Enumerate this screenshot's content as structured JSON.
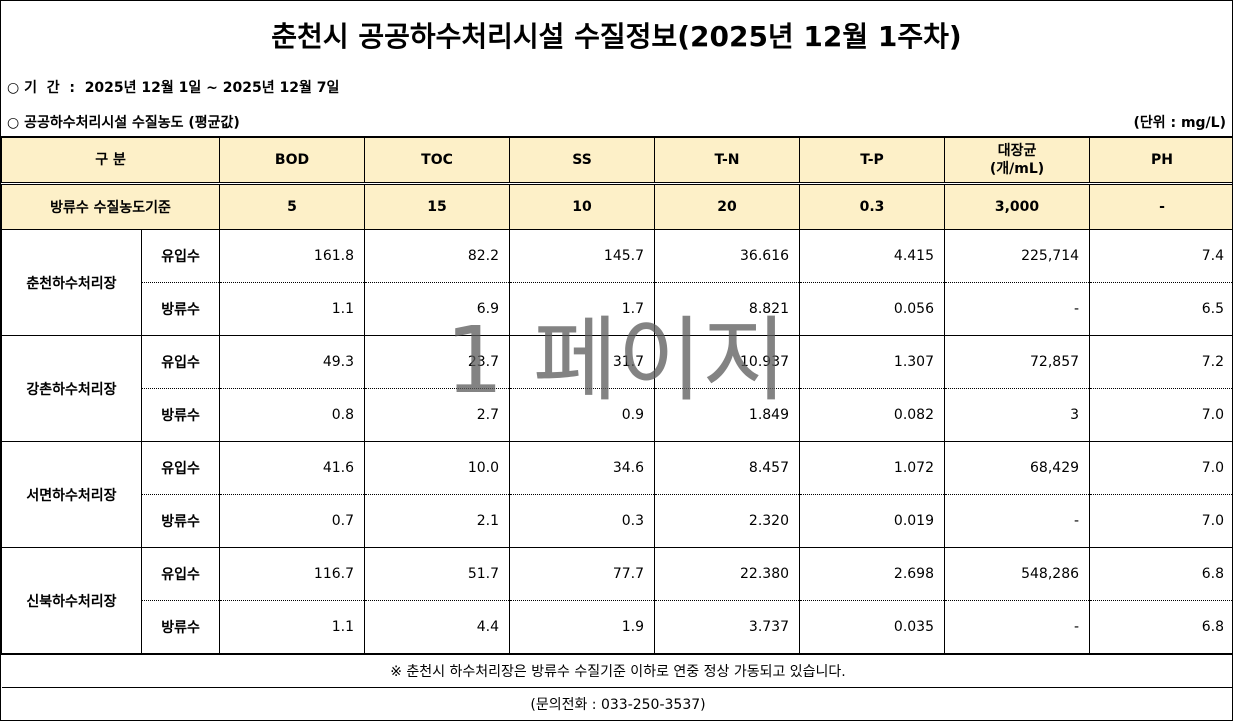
{
  "header": {
    "title": "춘천시 공공하수처리시설 수질정보(2025년 12월 1주차)",
    "period": "○ 기  간  :  2025년 12월 1일 ~ 2025년 12월 7일",
    "subtitle": "○ 공공하수처리시설 수질농도 (평균값)",
    "unit": "(단위 : mg/L)"
  },
  "table": {
    "columns": [
      "구  분",
      "BOD",
      "TOC",
      "SS",
      "T-N",
      "T-P",
      "대장균\n(개/mL)",
      "PH"
    ],
    "standard": {
      "label": "방류수 수질농도기준",
      "values": [
        "5",
        "15",
        "10",
        "20",
        "0.3",
        "3,000",
        "-"
      ]
    },
    "plants": [
      {
        "name": "춘천하수처리장",
        "rows": [
          {
            "type": "유입수",
            "values": [
              "161.8",
              "82.2",
              "145.7",
              "36.616",
              "4.415",
              "225,714",
              "7.4"
            ]
          },
          {
            "type": "방류수",
            "values": [
              "1.1",
              "6.9",
              "1.7",
              "8.821",
              "0.056",
              "-",
              "6.5"
            ]
          }
        ]
      },
      {
        "name": "강촌하수처리장",
        "rows": [
          {
            "type": "유입수",
            "values": [
              "49.3",
              "23.7",
              "31.7",
              "10.937",
              "1.307",
              "72,857",
              "7.2"
            ]
          },
          {
            "type": "방류수",
            "values": [
              "0.8",
              "2.7",
              "0.9",
              "1.849",
              "0.082",
              "3",
              "7.0"
            ]
          }
        ]
      },
      {
        "name": "서면하수처리장",
        "rows": [
          {
            "type": "유입수",
            "values": [
              "41.6",
              "10.0",
              "34.6",
              "8.457",
              "1.072",
              "68,429",
              "7.0"
            ]
          },
          {
            "type": "방류수",
            "values": [
              "0.7",
              "2.1",
              "0.3",
              "2.320",
              "0.019",
              "-",
              "7.0"
            ]
          }
        ]
      },
      {
        "name": "신북하수처리장",
        "rows": [
          {
            "type": "유입수",
            "values": [
              "116.7",
              "51.7",
              "77.7",
              "22.380",
              "2.698",
              "548,286",
              "6.8"
            ]
          },
          {
            "type": "방류수",
            "values": [
              "1.1",
              "4.4",
              "1.9",
              "3.737",
              "0.035",
              "-",
              "6.8"
            ]
          }
        ]
      }
    ]
  },
  "footer": {
    "note": "※ 춘천시 하수처리장은 방류수 수질기준 이하로 연중 정상 가동되고 있습니다.",
    "contact": "(문의전화 : 033-250-3537)"
  },
  "watermark": "1 페이지"
}
